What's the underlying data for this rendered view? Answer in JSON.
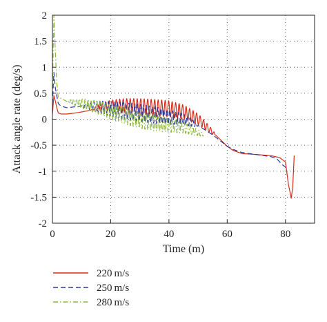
{
  "chart_data": {
    "type": "line",
    "xlabel": "Time (m)",
    "ylabel": "Attack angle rate (deg/s)",
    "xlim": [
      0,
      90
    ],
    "ylim": [
      -2,
      2
    ],
    "xticks": [
      0,
      20,
      40,
      60,
      80
    ],
    "yticks": [
      -2,
      -1.5,
      -1,
      -0.5,
      0,
      0.5,
      1,
      1.5,
      2
    ],
    "grid": "dotted",
    "legend_position": "bottom-left, below plot",
    "series": [
      {
        "name": "220 m/s",
        "color": "#d62c1a",
        "dash": "solid",
        "oscillation": {
          "from": 14,
          "to": 56,
          "period": 1.2,
          "amplitude": 0.16
        },
        "x": [
          0,
          0.5,
          1,
          1.5,
          2,
          3,
          5,
          8,
          12,
          16,
          20,
          25,
          30,
          35,
          40,
          45,
          50,
          55,
          60,
          62,
          65,
          70,
          75,
          78,
          80,
          81,
          82,
          82.5,
          83
        ],
        "y": [
          0.1,
          0.45,
          0.35,
          0.22,
          0.12,
          0.1,
          0.1,
          0.12,
          0.16,
          0.22,
          0.26,
          0.26,
          0.24,
          0.22,
          0.2,
          0.14,
          0.0,
          -0.25,
          -0.52,
          -0.6,
          -0.66,
          -0.68,
          -0.7,
          -0.74,
          -0.82,
          -1.25,
          -1.52,
          -1.3,
          -0.7
        ]
      },
      {
        "name": "250 m/s",
        "color": "#2b3a9a",
        "dash": "dashed",
        "oscillation": {
          "from": 10,
          "to": 50,
          "period": 1.0,
          "amplitude": 0.17
        },
        "x": [
          0,
          0.5,
          1,
          1.5,
          2,
          3,
          5,
          8,
          12,
          16,
          20,
          25,
          30,
          35,
          40,
          45,
          50,
          55,
          60,
          62,
          65,
          70,
          75,
          77,
          79,
          80
        ],
        "y": [
          0.3,
          0.9,
          0.6,
          0.45,
          0.3,
          0.25,
          0.22,
          0.24,
          0.26,
          0.24,
          0.2,
          0.16,
          0.12,
          0.08,
          0.04,
          0.0,
          -0.12,
          -0.3,
          -0.52,
          -0.58,
          -0.64,
          -0.68,
          -0.72,
          -0.76,
          -0.88,
          -0.92
        ]
      },
      {
        "name": "280 m/s",
        "color": "#8ab83a",
        "dash": "dashdot",
        "oscillation": {
          "from": 5,
          "to": 52,
          "period": 1.0,
          "amplitude": 0.16
        },
        "x": [
          0,
          0.5,
          1,
          1.5,
          2,
          3,
          5,
          8,
          12,
          16,
          20,
          25,
          30,
          35,
          40,
          45,
          50,
          55,
          60,
          62,
          65,
          70,
          75,
          78,
          80,
          81
        ],
        "y": [
          0.6,
          2.0,
          1.3,
          0.7,
          0.42,
          0.4,
          0.34,
          0.32,
          0.28,
          0.22,
          0.14,
          0.06,
          -0.02,
          -0.08,
          -0.12,
          -0.16,
          -0.26,
          -0.38,
          -0.46,
          -0.48,
          -0.5,
          -0.48,
          -0.46,
          -0.4,
          -0.3,
          -0.2
        ]
      }
    ]
  }
}
